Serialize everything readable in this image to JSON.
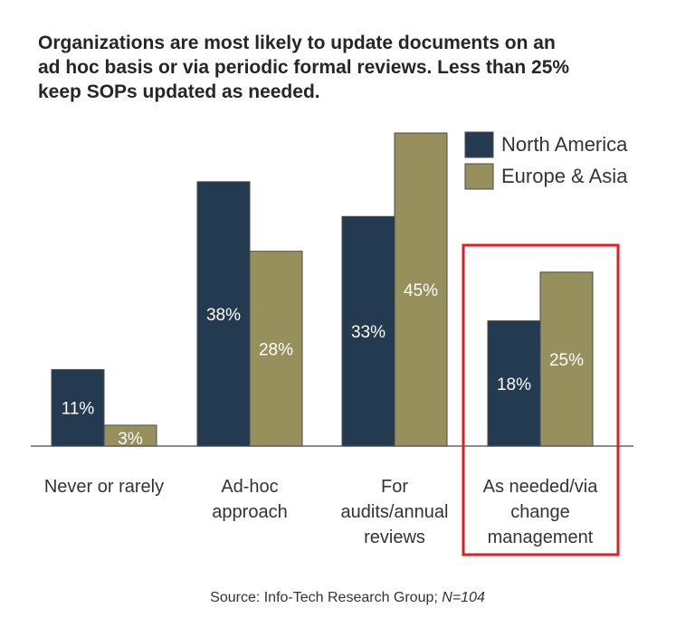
{
  "title_lines": [
    "Organizations are most likely to update documents on an",
    "ad hoc basis or via periodic formal reviews. Less than 25%",
    "keep SOPs updated as needed."
  ],
  "chart_data": {
    "type": "bar",
    "title": "Organizations are most likely to update documents on an ad hoc basis or via periodic formal reviews. Less than 25% keep SOPs updated as needed.",
    "categories": [
      [
        "Never or rarely"
      ],
      [
        "Ad-hoc",
        "approach"
      ],
      [
        "For",
        "audits/annual",
        "reviews"
      ],
      [
        "As needed/via",
        "change",
        "management"
      ]
    ],
    "series": [
      {
        "name": "North America",
        "values": [
          11,
          38,
          33,
          18
        ],
        "labels": [
          "11%",
          "38%",
          "33%",
          "18%"
        ],
        "color": "#233a51"
      },
      {
        "name": "Europe & Asia",
        "values": [
          3,
          28,
          45,
          25
        ],
        "labels": [
          "3%",
          "28%",
          "45%",
          "25%"
        ],
        "color": "#97905c"
      }
    ],
    "ylim": [
      0,
      45
    ],
    "xlabel": "",
    "ylabel": "",
    "grid": false,
    "legend": "top-right",
    "highlight_category": 3,
    "highlight_color": "#e31b23",
    "label_color": "#ffffff"
  },
  "source": {
    "prefix": "Source: Info-Tech Research Group; ",
    "n": "N=104"
  }
}
